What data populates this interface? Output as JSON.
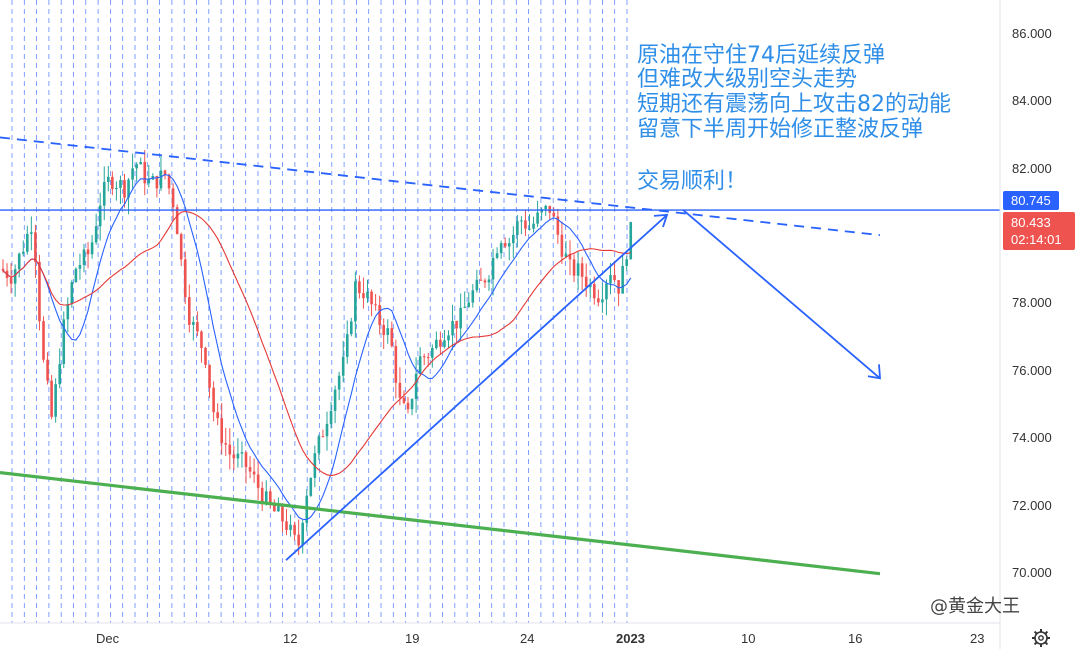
{
  "chart_data": {
    "type": "candlestick",
    "title": "",
    "y_axis": {
      "ticks": [
        "86.000",
        "84.000",
        "82.000",
        "78.000",
        "76.000",
        "74.000",
        "72.000",
        "70.000"
      ],
      "ylim": [
        69.4,
        87.0
      ],
      "position": "right"
    },
    "x_axis": {
      "ticks": [
        "Dec",
        "12",
        "19",
        "24",
        "2023",
        "10",
        "16",
        "23"
      ]
    },
    "grid": "vertical-dashed",
    "annotations": [
      "原油在守住74后延续反弹",
      "但难改大级别空头走势",
      "短期还有震荡向上攻击82的动能",
      "留意下半周开始修正整波反弹",
      "交易顺利！"
    ],
    "price_tags": {
      "high_line": "80.745",
      "last": "80.433",
      "countdown": "02:14:01"
    },
    "candles_visible_range": {
      "start_close": 79.0,
      "end_close": 80.43
    },
    "key_points": [
      {
        "label": "low",
        "value": 70.4
      },
      {
        "label": "swing_high",
        "value": 80.9
      },
      {
        "label": "last",
        "value": 80.43
      }
    ],
    "lines": [
      {
        "name": "",
        "kind": "horizontal",
        "color": "#2962ff",
        "value": 80.745
      },
      {
        "name": "",
        "kind": "dashed-trend",
        "color": "#2962ff",
        "from": [
          0,
          82.9
        ],
        "to": [
          880,
          80.0
        ]
      },
      {
        "name": "",
        "kind": "trend",
        "color": "#4caf50",
        "from": [
          0,
          72.95
        ],
        "to": [
          880,
          69.95
        ]
      },
      {
        "name": "",
        "kind": "trend",
        "color": "#2962ff",
        "from": [
          286,
          70.35
        ],
        "to": [
          667,
          80.6
        ]
      }
    ],
    "projection": {
      "from": [
        683,
        80.75
      ],
      "to": [
        880,
        75.75
      ],
      "color": "#2962ff"
    },
    "colors": {
      "up": "#26a69a",
      "down": "#ef5350",
      "ma_fast": "#2962ff",
      "ma_slow": "#e53935",
      "grid": "#2962ff"
    }
  },
  "watermark": "@黄金大王",
  "settings_icon": "gear-icon"
}
